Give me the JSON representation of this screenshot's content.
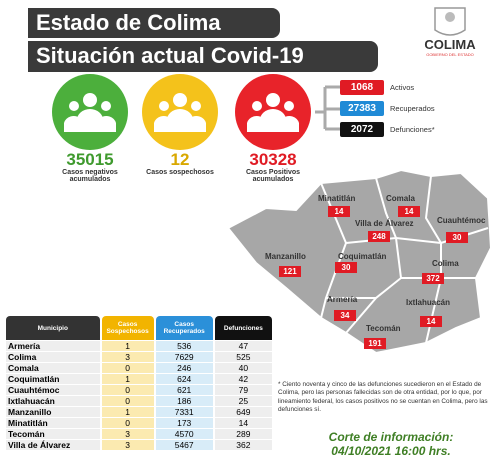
{
  "header": {
    "title": "Estado de Colima",
    "subtitle": "Situación actual Covid-19",
    "logo": "COLIMA",
    "logo_sub": "GOBIERNO DEL ESTADO"
  },
  "summary": [
    {
      "value": 35015,
      "label": "Casos negativos acumulados"
    },
    {
      "value": 12,
      "label": "Casos sospechosos"
    },
    {
      "value": 30328,
      "label": "Casos Positivos acumulados"
    }
  ],
  "status": [
    {
      "value": 1068,
      "label": "Activos"
    },
    {
      "value": 27383,
      "label": "Recuperados"
    },
    {
      "value": 2072,
      "label": "Defunciones*"
    }
  ],
  "map": [
    {
      "name": "Minatitlán",
      "value": 14
    },
    {
      "name": "Comala",
      "value": 14
    },
    {
      "name": "Villa de Álvarez",
      "value": 248
    },
    {
      "name": "Cuauhtémoc",
      "value": 30
    },
    {
      "name": "Manzanillo",
      "value": 121
    },
    {
      "name": "Coquimatlán",
      "value": 30
    },
    {
      "name": "Colima",
      "value": 372
    },
    {
      "name": "Armería",
      "value": 34
    },
    {
      "name": "Ixtlahuacán",
      "value": 14
    },
    {
      "name": "Tecomán",
      "value": 191
    }
  ],
  "table": {
    "header": [
      "Municipio",
      "Casos Sospechosos",
      "Casos Recuperados",
      "Defunciones"
    ],
    "rows": [
      [
        "Armería",
        1,
        536,
        47
      ],
      [
        "Colima",
        3,
        7629,
        525
      ],
      [
        "Comala",
        0,
        246,
        40
      ],
      [
        "Coquimatlán",
        1,
        624,
        42
      ],
      [
        "Cuauhtémoc",
        0,
        621,
        79
      ],
      [
        "Ixtlahuacán",
        0,
        186,
        25
      ],
      [
        "Manzanillo",
        1,
        7331,
        649
      ],
      [
        "Minatitlán",
        0,
        173,
        14
      ],
      [
        "Tecomán",
        3,
        4570,
        289
      ],
      [
        "Villa de Álvarez",
        3,
        5467,
        362
      ]
    ]
  },
  "note": "* Ciento noventa y cinco de las defunciones sucedieron en el Estado de Colima, pero las personas fallecidas son de otra entidad, por lo que, por lineamiento federal, los casos positivos no se cuentan en Colima, pero las defunciones sí.",
  "footer": {
    "label": "Corte de información:",
    "date": "04/10/2021 16:00 hrs."
  }
}
